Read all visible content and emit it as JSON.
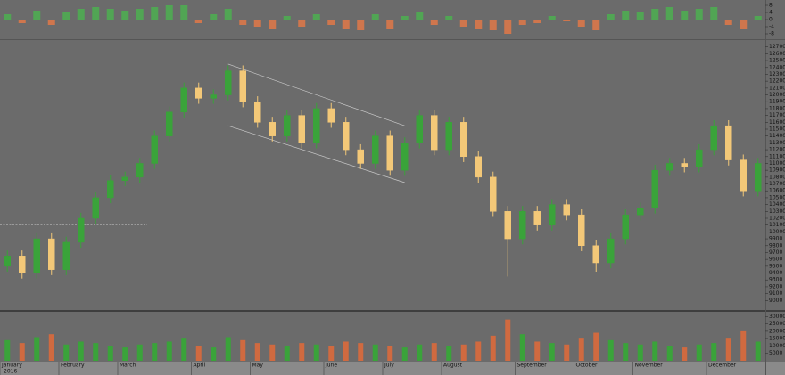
{
  "chart_data": {
    "type": "candlestick",
    "year_label": "2016",
    "up_color": "#3aa33a",
    "down_color": "#f3c878",
    "categories": [
      "January",
      null,
      null,
      null,
      "February",
      null,
      null,
      null,
      "March",
      null,
      null,
      null,
      null,
      "April",
      null,
      null,
      null,
      "May",
      null,
      null,
      null,
      null,
      "June",
      null,
      null,
      null,
      "July",
      null,
      null,
      null,
      "August",
      null,
      null,
      null,
      null,
      "September",
      null,
      null,
      null,
      "October",
      null,
      null,
      null,
      "November",
      null,
      null,
      null,
      null,
      "December",
      null,
      null,
      null
    ],
    "ohlc": [
      [
        9500,
        9730,
        9420,
        9650
      ],
      [
        9650,
        9730,
        9320,
        9400
      ],
      [
        9400,
        9980,
        9320,
        9900
      ],
      [
        9900,
        9980,
        9370,
        9450
      ],
      [
        9450,
        9930,
        9370,
        9850
      ],
      [
        9850,
        10280,
        9770,
        10200
      ],
      [
        10200,
        10580,
        10120,
        10500
      ],
      [
        10500,
        10830,
        10420,
        10750
      ],
      [
        10750,
        10880,
        10670,
        10800
      ],
      [
        10800,
        11080,
        10720,
        11000
      ],
      [
        11000,
        11480,
        10920,
        11400
      ],
      [
        11400,
        11830,
        11320,
        11750
      ],
      [
        11750,
        12180,
        11670,
        12100
      ],
      [
        12100,
        12180,
        11870,
        11950
      ],
      [
        11950,
        12080,
        11870,
        12000
      ],
      [
        12000,
        12430,
        11920,
        12350
      ],
      [
        12350,
        12430,
        11820,
        11900
      ],
      [
        11900,
        11980,
        11520,
        11600
      ],
      [
        11600,
        11680,
        11320,
        11400
      ],
      [
        11400,
        11780,
        11320,
        11700
      ],
      [
        11700,
        11780,
        11220,
        11300
      ],
      [
        11300,
        11880,
        11220,
        11800
      ],
      [
        11800,
        11880,
        11520,
        11600
      ],
      [
        11600,
        11680,
        11120,
        11200
      ],
      [
        11200,
        11280,
        10920,
        11000
      ],
      [
        11000,
        11480,
        10920,
        11400
      ],
      [
        11400,
        11480,
        10820,
        10900
      ],
      [
        10900,
        11380,
        10820,
        11300
      ],
      [
        11300,
        11780,
        11220,
        11700
      ],
      [
        11700,
        11780,
        11120,
        11200
      ],
      [
        11200,
        11680,
        11120,
        11600
      ],
      [
        11600,
        11680,
        11020,
        11100
      ],
      [
        11100,
        11180,
        10720,
        10800
      ],
      [
        10800,
        10880,
        10220,
        10300
      ],
      [
        10300,
        10380,
        9350,
        9900
      ],
      [
        9900,
        10380,
        9820,
        10300
      ],
      [
        10300,
        10380,
        10020,
        10100
      ],
      [
        10100,
        10480,
        10020,
        10400
      ],
      [
        10400,
        10480,
        10170,
        10250
      ],
      [
        10250,
        10330,
        9720,
        9800
      ],
      [
        9800,
        9880,
        9420,
        9550
      ],
      [
        9550,
        9980,
        9470,
        9900
      ],
      [
        9900,
        10330,
        9820,
        10250
      ],
      [
        10250,
        10430,
        10170,
        10350
      ],
      [
        10350,
        10980,
        10270,
        10900
      ],
      [
        10900,
        11080,
        10820,
        11000
      ],
      [
        11000,
        11080,
        10870,
        10950
      ],
      [
        10950,
        11280,
        10870,
        11200
      ],
      [
        11200,
        11630,
        11120,
        11550
      ],
      [
        11550,
        11630,
        10970,
        11050
      ],
      [
        11050,
        11130,
        10520,
        10600
      ],
      [
        10600,
        11080,
        10520,
        11000
      ]
    ],
    "ylim": [
      8900,
      12800
    ],
    "yticks": [
      9000,
      9100,
      9200,
      9300,
      9400,
      9500,
      9600,
      9700,
      9800,
      9900,
      10000,
      10100,
      10200,
      10300,
      10400,
      10500,
      10600,
      10700,
      10800,
      10900,
      11000,
      11100,
      11200,
      11300,
      11400,
      11500,
      11600,
      11700,
      11800,
      11900,
      12000,
      12100,
      12200,
      12300,
      12400,
      12500,
      12600,
      12700
    ],
    "support_lines": [
      {
        "value": 9400,
        "start": 0,
        "end": 51
      },
      {
        "value": 10100,
        "start": 0,
        "end": 9
      }
    ],
    "channel_lines": [
      {
        "from": [
          15,
          12450
        ],
        "to": [
          27,
          11550
        ]
      },
      {
        "from": [
          15,
          11550
        ],
        "to": [
          27,
          10720
        ]
      }
    ],
    "volume": {
      "values": [
        14000,
        12000,
        16000,
        18000,
        11000,
        13000,
        12000,
        10000,
        9000,
        11000,
        12000,
        13000,
        15000,
        10000,
        9000,
        16000,
        14000,
        12000,
        11000,
        10000,
        12000,
        11000,
        10000,
        13000,
        12000,
        11000,
        10000,
        9000,
        11000,
        12000,
        10000,
        11000,
        13000,
        17000,
        28000,
        18000,
        13000,
        12000,
        11000,
        15000,
        19000,
        14000,
        12000,
        11000,
        13000,
        10000,
        9000,
        11000,
        12000,
        15000,
        20000,
        13000
      ],
      "ylim": [
        0,
        32000
      ],
      "yticks": [
        5000,
        10000,
        15000,
        20000,
        25000,
        30000
      ]
    },
    "indicator": {
      "values": [
        3,
        -2,
        5,
        -3,
        4,
        6,
        7,
        6,
        5,
        6,
        7,
        8,
        8,
        -2,
        3,
        6,
        -3,
        -4,
        -5,
        2,
        -4,
        3,
        -3,
        -5,
        -6,
        3,
        -5,
        2,
        4,
        -3,
        2,
        -4,
        -5,
        -6,
        -8,
        -3,
        -2,
        2,
        -1,
        -4,
        -6,
        3,
        5,
        4,
        6,
        7,
        5,
        6,
        7,
        -3,
        -5,
        2
      ],
      "ylim": [
        -10,
        10
      ],
      "yticks": [
        -8,
        -4,
        0,
        4,
        8
      ],
      "up_color": "#4caf50",
      "down_color": "#e07848"
    }
  }
}
